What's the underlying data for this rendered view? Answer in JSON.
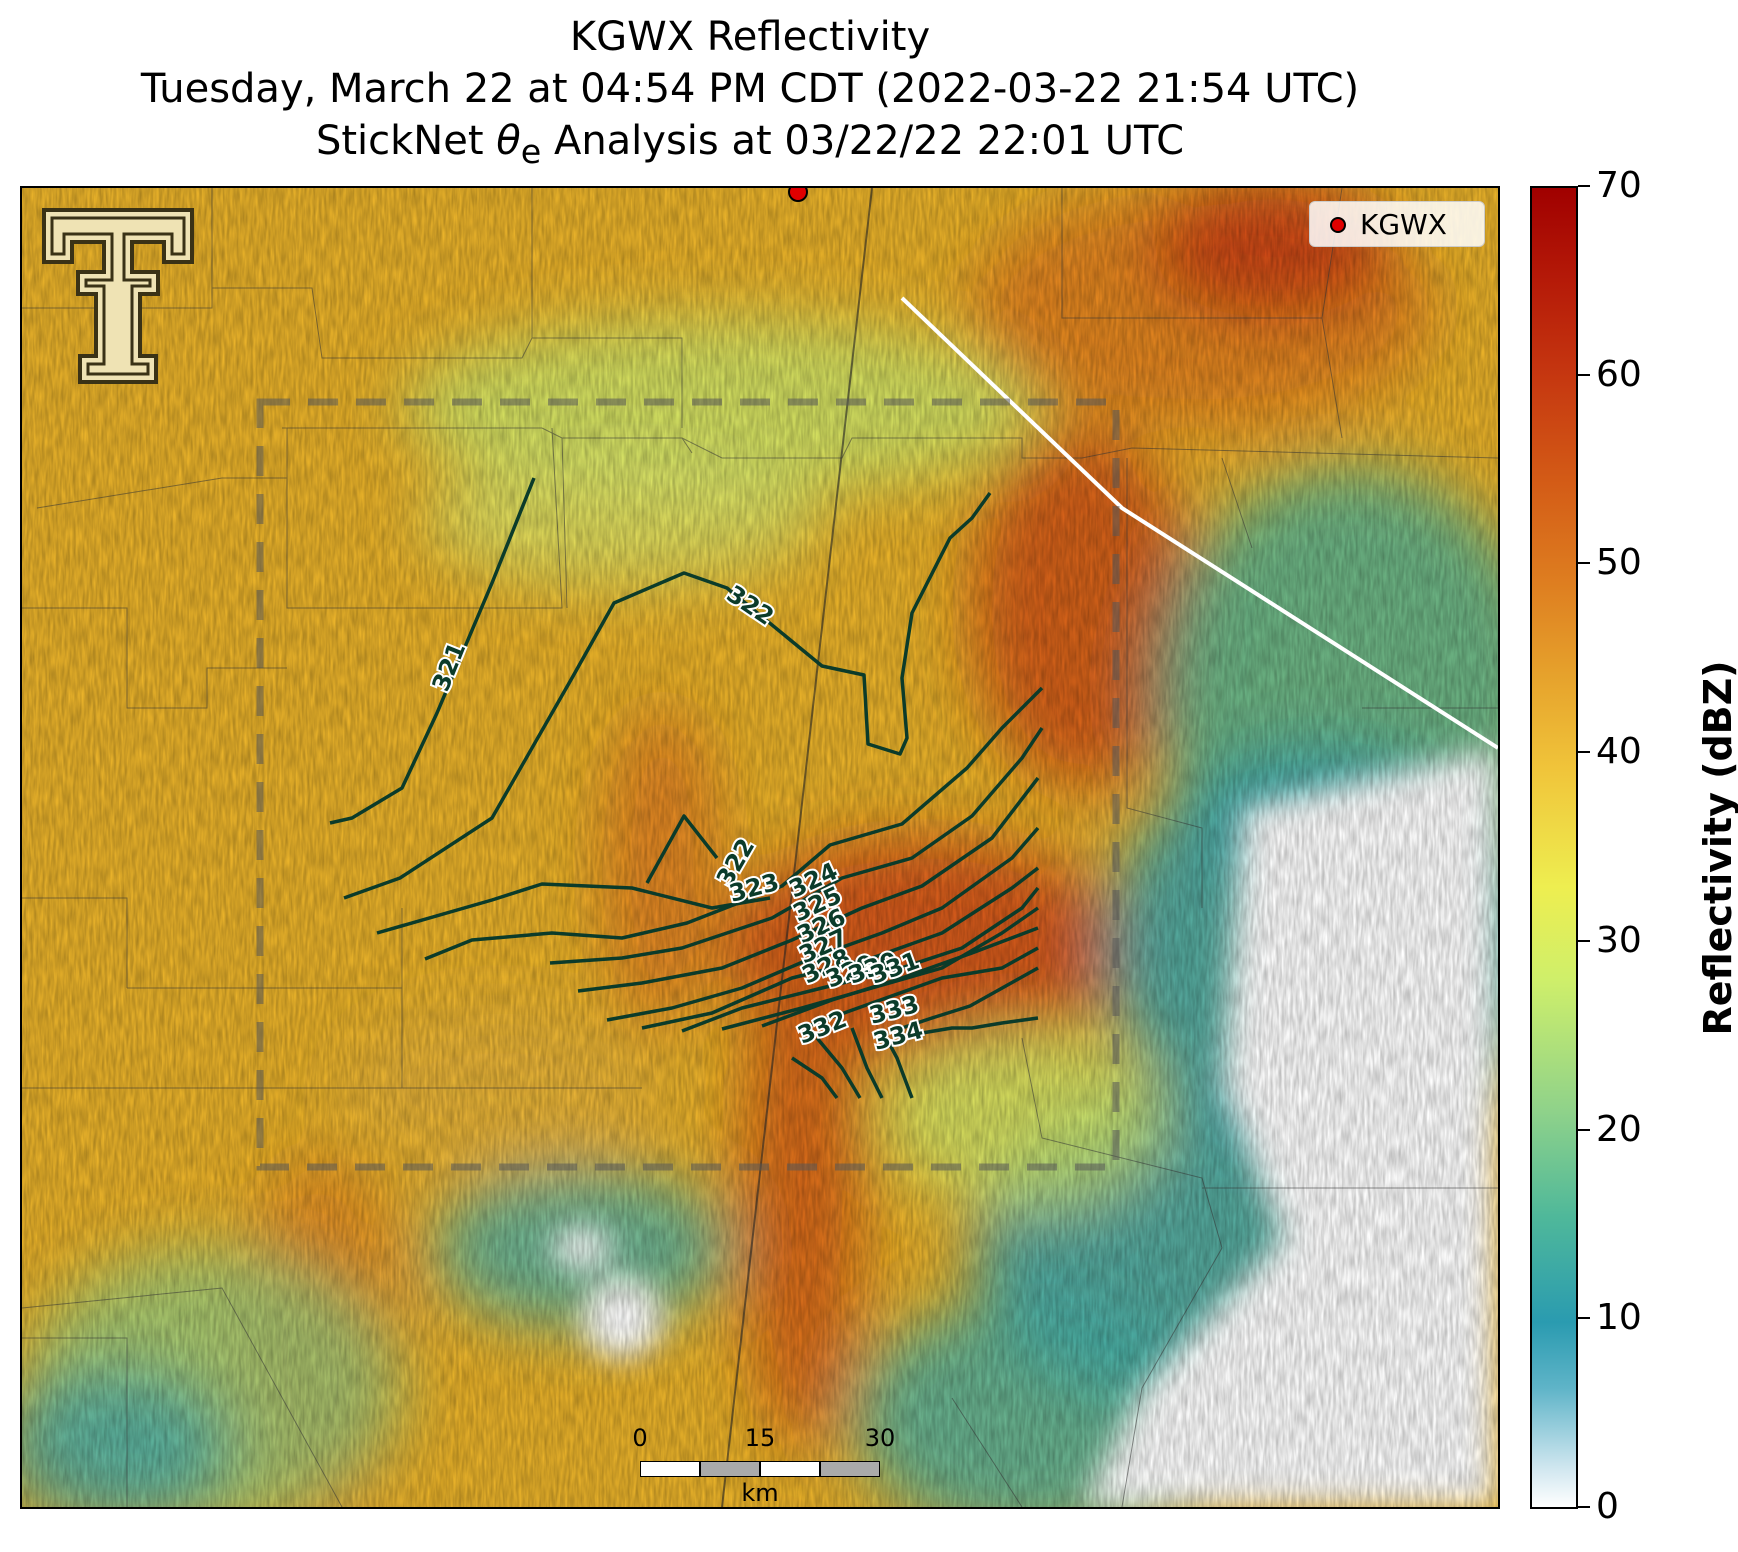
{
  "title": {
    "line1": "KGWX Reflectivity",
    "line2": "Tuesday, March 22 at 04:54 PM CDT (2022-03-22 21:54 UTC)",
    "line3_prefix": "StickNet ",
    "line3_symbol": "θ",
    "line3_sub": "e",
    "line3_suffix": " Analysis at 03/22/22 22:01 UTC"
  },
  "legend": {
    "label": "KGWX",
    "marker_color": "#e00000"
  },
  "colorbar": {
    "label": "Reflectivity (dBZ)",
    "ticks": [
      "0",
      "10",
      "20",
      "30",
      "40",
      "50",
      "60",
      "70"
    ],
    "range": [
      0,
      70
    ],
    "colormap": "reflectivity (white-blue-green-yellow-orange-red)"
  },
  "scalebar": {
    "labels": [
      "0",
      "15",
      "30"
    ],
    "unit": "km"
  },
  "contour_labels": [
    "321",
    "322",
    "322",
    "323",
    "324",
    "325",
    "326",
    "327",
    "328",
    "329",
    "330",
    "331",
    "332",
    "333",
    "334"
  ],
  "contour_color": "#0b3b2a",
  "logo": "texas-tech-double-t-logo",
  "colors": {
    "storm_core": "#c43a10",
    "clear_air": "#ffffff"
  }
}
